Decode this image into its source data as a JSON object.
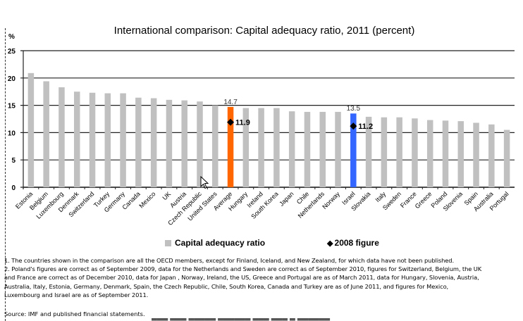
{
  "chart_data": {
    "type": "bar",
    "title": "International comparison: Capital adequacy ratio, 2011 (percent)",
    "ylabel": "%",
    "xlabel": "",
    "ylim": [
      0,
      25
    ],
    "yticks": [
      0,
      5,
      10,
      15,
      20,
      25
    ],
    "grid": true,
    "categories": [
      "Estonia",
      "Belgium",
      "Luxembourg",
      "Denmark",
      "Switzerland",
      "Turkey",
      "Germany",
      "Canada",
      "Mexico",
      "UK",
      "Austria",
      "Czech Republic",
      "United States",
      "Average",
      "Hungary",
      "Ireland",
      "South Korea",
      "Japan",
      "Chile",
      "Netherlands",
      "Norway",
      "Israel",
      "Slovakia",
      "Italy",
      "Sweden",
      "France",
      "Greece",
      "Poland",
      "Slovenia",
      "Spain",
      "Australia",
      "Portugal"
    ],
    "series": [
      {
        "name": "Capital adequacy ratio",
        "values": [
          20.9,
          19.4,
          18.3,
          17.5,
          17.3,
          17.2,
          17.2,
          16.4,
          16.3,
          16.0,
          15.9,
          15.7,
          15.0,
          14.7,
          14.5,
          14.5,
          14.5,
          13.9,
          13.8,
          13.8,
          13.8,
          13.5,
          12.9,
          12.8,
          12.8,
          12.6,
          12.3,
          12.2,
          12.1,
          11.8,
          11.5,
          10.5
        ],
        "color": "#c0c0c0",
        "highlights": {
          "Average": "#ff6600",
          "Israel": "#3366ff"
        },
        "data_labels": {
          "Average": "14.7",
          "Israel": "13.5"
        }
      },
      {
        "name": "2008 figure",
        "type": "marker",
        "points": [
          {
            "category": "Average",
            "value": 11.9,
            "label": "11.9"
          },
          {
            "category": "Israel",
            "value": 11.2,
            "label": "11.2"
          }
        ],
        "color": "#000000"
      }
    ],
    "legend": {
      "position": "bottom",
      "items": [
        "Capital adequacy ratio",
        "2008 figure"
      ]
    }
  },
  "notes": [
    "1. The countries shown in the comparison are all the OECD members, except for Finland, Iceland, and New Zealand, for which data have not been published.",
    "2. Poland's figures are correct as of September 2009, data for the Netherlands and Sweden are correct as of September 2010, figures for Switzerland, Belgium, the UK",
    "and France are correct as of December 2010, data for Japan , Norway, Ireland, the US, Greece and Portugal are as of March 2011, data for Hungary, Slovenia, Austria,",
    "Australia, Italy, Estonia, Germany, Denmark, Spain, the Czech Republic, Chile, South Korea, Canada and Turkey are as of June 2011, and figures for Mexico,",
    "Luxembourg and Israel are as of September 2011."
  ],
  "source": "Source: IMF and published financial statements."
}
